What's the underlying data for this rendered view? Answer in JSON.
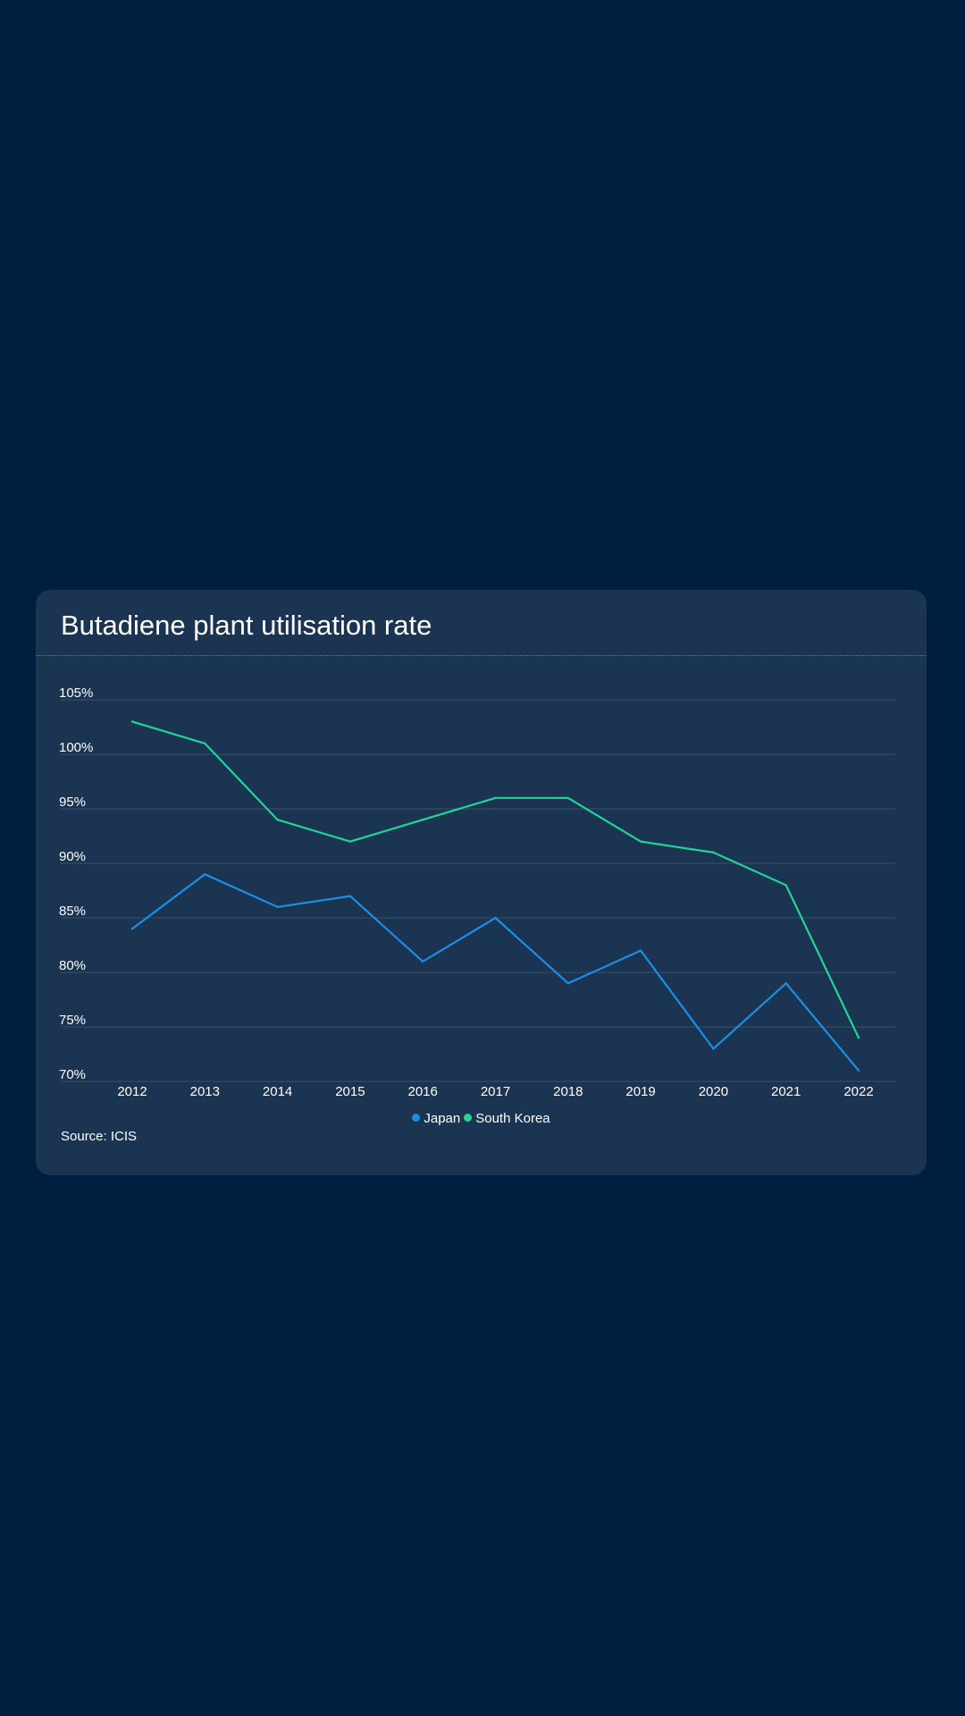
{
  "chart_data": {
    "type": "line",
    "title": "Butadiene plant utilisation rate",
    "xlabel": "",
    "ylabel": "",
    "categories": [
      "2012",
      "2013",
      "2014",
      "2015",
      "2016",
      "2017",
      "2018",
      "2019",
      "2020",
      "2021",
      "2022"
    ],
    "series": [
      {
        "name": "Japan",
        "color": "#1a8ee8",
        "values": [
          84,
          89,
          86,
          87,
          81,
          85,
          79,
          82,
          73,
          79,
          71
        ]
      },
      {
        "name": "South Korea",
        "color": "#1fd697",
        "values": [
          103,
          101,
          94,
          92,
          94,
          96,
          96,
          92,
          91,
          88,
          74
        ]
      }
    ],
    "ylim": [
      70,
      105
    ],
    "yticks": [
      105,
      100,
      95,
      90,
      85,
      80,
      75,
      70
    ],
    "ytick_labels": [
      "105%",
      "100%",
      "95%",
      "90%",
      "85%",
      "80%",
      "75%",
      "70%"
    ],
    "grid": true,
    "legend_position": "bottom-center",
    "source": "Source: ICIS"
  }
}
